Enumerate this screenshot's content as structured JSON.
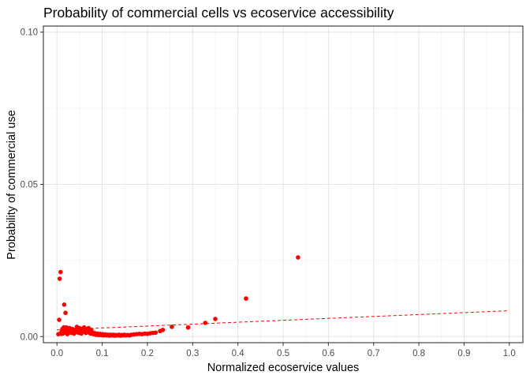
{
  "chart_data": {
    "type": "scatter",
    "title": "Probability of commercial cells vs ecoservice accessibility",
    "xlabel": "Normalized ecoservice values",
    "ylabel": "Probability of commercial use",
    "xlim": [
      -0.03,
      1.03
    ],
    "ylim": [
      -0.002,
      0.102
    ],
    "x_ticks": [
      0.0,
      0.1,
      0.2,
      0.3,
      0.4,
      0.5,
      0.6,
      0.7,
      0.8,
      0.9,
      1.0
    ],
    "x_tick_labels": [
      "0.0",
      "0.1",
      "0.2",
      "0.3",
      "0.4",
      "0.5",
      "0.6",
      "0.7",
      "0.8",
      "0.9",
      "1.0"
    ],
    "y_ticks": [
      0.0,
      0.05,
      0.1
    ],
    "y_tick_labels": [
      "0.00",
      "0.05",
      "0.10"
    ],
    "grid": true,
    "point_color": "#ff0000",
    "trend_color": "#ff0000",
    "points": [
      [
        0.003,
        0.0008
      ],
      [
        0.005,
        0.0055
      ],
      [
        0.006,
        0.019
      ],
      [
        0.008,
        0.0212
      ],
      [
        0.009,
        0.0012
      ],
      [
        0.01,
        0.0009
      ],
      [
        0.011,
        0.0018
      ],
      [
        0.012,
        0.0025
      ],
      [
        0.013,
        0.001
      ],
      [
        0.015,
        0.003
      ],
      [
        0.016,
        0.0105
      ],
      [
        0.017,
        0.0015
      ],
      [
        0.018,
        0.002
      ],
      [
        0.019,
        0.0078
      ],
      [
        0.02,
        0.0012
      ],
      [
        0.021,
        0.003
      ],
      [
        0.022,
        0.0018
      ],
      [
        0.023,
        0.0008
      ],
      [
        0.025,
        0.0022
      ],
      [
        0.026,
        0.0014
      ],
      [
        0.028,
        0.0028
      ],
      [
        0.03,
        0.002
      ],
      [
        0.032,
        0.0012
      ],
      [
        0.034,
        0.0025
      ],
      [
        0.036,
        0.0018
      ],
      [
        0.038,
        0.001
      ],
      [
        0.04,
        0.0022
      ],
      [
        0.042,
        0.0015
      ],
      [
        0.044,
        0.0032
      ],
      [
        0.046,
        0.002
      ],
      [
        0.048,
        0.0012
      ],
      [
        0.05,
        0.0028
      ],
      [
        0.052,
        0.0018
      ],
      [
        0.054,
        0.001
      ],
      [
        0.056,
        0.0025
      ],
      [
        0.058,
        0.0016
      ],
      [
        0.06,
        0.003
      ],
      [
        0.062,
        0.002
      ],
      [
        0.064,
        0.0012
      ],
      [
        0.066,
        0.0025
      ],
      [
        0.068,
        0.0015
      ],
      [
        0.07,
        0.0028
      ],
      [
        0.072,
        0.0018
      ],
      [
        0.074,
        0.001
      ],
      [
        0.076,
        0.0022
      ],
      [
        0.078,
        0.0013
      ],
      [
        0.08,
        0.0008
      ],
      [
        0.083,
        0.0012
      ],
      [
        0.086,
        0.0006
      ],
      [
        0.089,
        0.001
      ],
      [
        0.092,
        0.0005
      ],
      [
        0.095,
        0.0009
      ],
      [
        0.098,
        0.0005
      ],
      [
        0.101,
        0.0008
      ],
      [
        0.104,
        0.0004
      ],
      [
        0.107,
        0.0007
      ],
      [
        0.11,
        0.0004
      ],
      [
        0.113,
        0.0006
      ],
      [
        0.116,
        0.0003
      ],
      [
        0.119,
        0.0006
      ],
      [
        0.122,
        0.0004
      ],
      [
        0.125,
        0.0006
      ],
      [
        0.128,
        0.0003
      ],
      [
        0.131,
        0.0005
      ],
      [
        0.134,
        0.0004
      ],
      [
        0.137,
        0.0006
      ],
      [
        0.14,
        0.0003
      ],
      [
        0.143,
        0.0005
      ],
      [
        0.146,
        0.0004
      ],
      [
        0.149,
        0.0006
      ],
      [
        0.152,
        0.0004
      ],
      [
        0.156,
        0.0005
      ],
      [
        0.16,
        0.0004
      ],
      [
        0.164,
        0.0006
      ],
      [
        0.17,
        0.0007
      ],
      [
        0.176,
        0.0008
      ],
      [
        0.182,
        0.0009
      ],
      [
        0.188,
        0.0008
      ],
      [
        0.194,
        0.001
      ],
      [
        0.2,
        0.0009
      ],
      [
        0.206,
        0.0011
      ],
      [
        0.212,
        0.0012
      ],
      [
        0.218,
        0.0013
      ],
      [
        0.228,
        0.0018
      ],
      [
        0.234,
        0.0022
      ],
      [
        0.254,
        0.0032
      ],
      [
        0.29,
        0.003
      ],
      [
        0.328,
        0.0045
      ],
      [
        0.35,
        0.0058
      ],
      [
        0.418,
        0.0125
      ],
      [
        0.533,
        0.026
      ]
    ],
    "trend_line": {
      "style": "dashed",
      "x": [
        0.0,
        1.0
      ],
      "y": [
        0.0022,
        0.0085
      ]
    }
  }
}
